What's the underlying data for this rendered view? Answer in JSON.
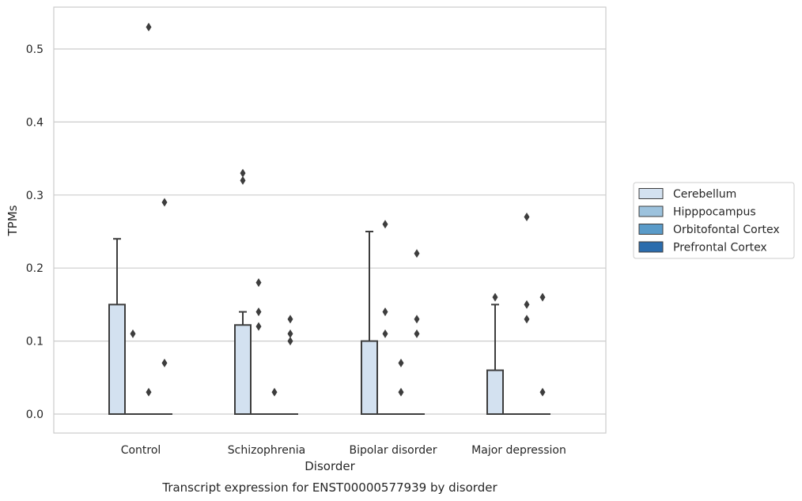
{
  "chart_data": {
    "type": "box",
    "caption": "Transcript expression for ENST00000577939 by disorder",
    "xlabel": "Disorder",
    "ylabel": "TPMs",
    "ylim": [
      -0.026,
      0.557
    ],
    "yticks": [
      0.0,
      0.1,
      0.2,
      0.3,
      0.4,
      0.5
    ],
    "ytick_labels": [
      "0.0",
      "0.1",
      "0.2",
      "0.3",
      "0.4",
      "0.5"
    ],
    "grid": "horizontal",
    "legend_position": "right",
    "categories": [
      "Control",
      "Schizophrenia",
      "Bipolar disorder",
      "Major depression"
    ],
    "series": [
      {
        "name": "Cerebellum",
        "color": "#d3e1f0",
        "boxes": [
          {
            "q1": 0.0,
            "median": 0.0,
            "q3": 0.15,
            "whisker_low": 0.0,
            "whisker_high": 0.24,
            "outliers": []
          },
          {
            "q1": 0.0,
            "median": 0.0,
            "q3": 0.122,
            "whisker_low": 0.0,
            "whisker_high": 0.14,
            "outliers": [
              0.33,
              0.32
            ]
          },
          {
            "q1": 0.0,
            "median": 0.0,
            "q3": 0.1,
            "whisker_low": 0.0,
            "whisker_high": 0.25,
            "outliers": []
          },
          {
            "q1": 0.0,
            "median": 0.0,
            "q3": 0.06,
            "whisker_low": 0.0,
            "whisker_high": 0.15,
            "outliers": [
              0.16
            ]
          }
        ]
      },
      {
        "name": "Hipppocampus",
        "color": "#9cc2dd",
        "boxes": [
          {
            "q1": 0.0,
            "median": 0.0,
            "q3": 0.0,
            "whisker_low": 0.0,
            "whisker_high": 0.0,
            "outliers": [
              0.11
            ]
          },
          {
            "q1": 0.0,
            "median": 0.0,
            "q3": 0.0,
            "whisker_low": 0.0,
            "whisker_high": 0.0,
            "outliers": [
              0.18,
              0.14,
              0.12
            ]
          },
          {
            "q1": 0.0,
            "median": 0.0,
            "q3": 0.0,
            "whisker_low": 0.0,
            "whisker_high": 0.0,
            "outliers": [
              0.26,
              0.14,
              0.11
            ]
          },
          {
            "q1": 0.0,
            "median": 0.0,
            "q3": 0.0,
            "whisker_low": 0.0,
            "whisker_high": 0.0,
            "outliers": []
          }
        ]
      },
      {
        "name": "Orbitofontal Cortex",
        "color": "#5a9bc9",
        "boxes": [
          {
            "q1": 0.0,
            "median": 0.0,
            "q3": 0.0,
            "whisker_low": 0.0,
            "whisker_high": 0.0,
            "outliers": [
              0.53,
              0.03
            ]
          },
          {
            "q1": 0.0,
            "median": 0.0,
            "q3": 0.0,
            "whisker_low": 0.0,
            "whisker_high": 0.0,
            "outliers": [
              0.03
            ]
          },
          {
            "q1": 0.0,
            "median": 0.0,
            "q3": 0.0,
            "whisker_low": 0.0,
            "whisker_high": 0.0,
            "outliers": [
              0.07,
              0.03
            ]
          },
          {
            "q1": 0.0,
            "median": 0.0,
            "q3": 0.0,
            "whisker_low": 0.0,
            "whisker_high": 0.0,
            "outliers": [
              0.27,
              0.15,
              0.13
            ]
          }
        ]
      },
      {
        "name": "Prefrontal Cortex",
        "color": "#2a6cad",
        "boxes": [
          {
            "q1": 0.0,
            "median": 0.0,
            "q3": 0.0,
            "whisker_low": 0.0,
            "whisker_high": 0.0,
            "outliers": [
              0.29,
              0.07
            ]
          },
          {
            "q1": 0.0,
            "median": 0.0,
            "q3": 0.0,
            "whisker_low": 0.0,
            "whisker_high": 0.0,
            "outliers": [
              0.13,
              0.11,
              0.1
            ]
          },
          {
            "q1": 0.0,
            "median": 0.0,
            "q3": 0.0,
            "whisker_low": 0.0,
            "whisker_high": 0.0,
            "outliers": [
              0.22,
              0.13,
              0.11
            ]
          },
          {
            "q1": 0.0,
            "median": 0.0,
            "q3": 0.0,
            "whisker_low": 0.0,
            "whisker_high": 0.0,
            "outliers": [
              0.16,
              0.03
            ]
          }
        ]
      }
    ]
  }
}
